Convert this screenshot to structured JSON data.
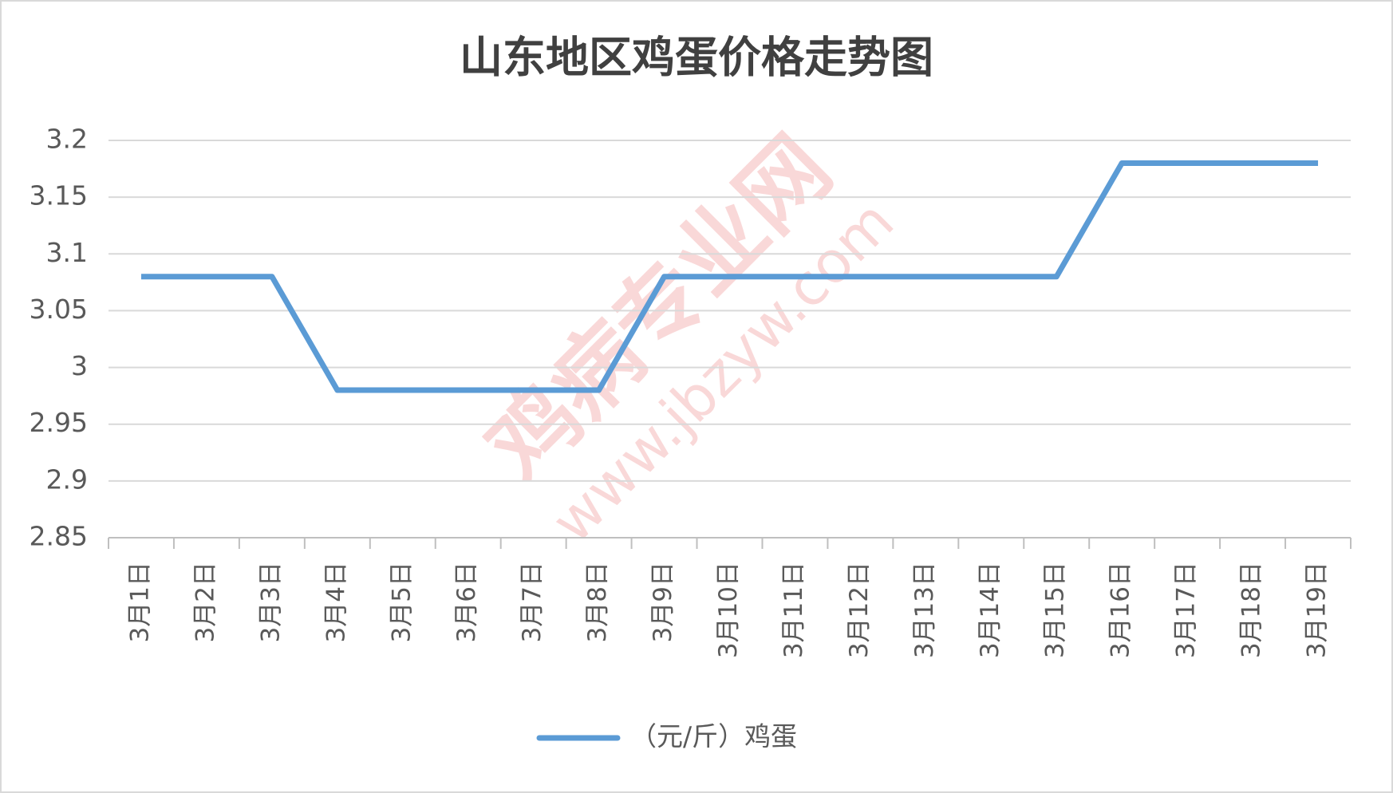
{
  "chart_data": {
    "type": "line",
    "title": "山东地区鸡蛋价格走势图",
    "categories": [
      "3月1日",
      "3月2日",
      "3月3日",
      "3月4日",
      "3月5日",
      "3月6日",
      "3月7日",
      "3月8日",
      "3月9日",
      "3月10日",
      "3月11日",
      "3月12日",
      "3月13日",
      "3月14日",
      "3月15日",
      "3月16日",
      "3月17日",
      "3月18日",
      "3月19日"
    ],
    "series": [
      {
        "name": "（元/斤）鸡蛋",
        "color": "#5b9bd5",
        "values": [
          3.08,
          3.08,
          3.08,
          2.98,
          2.98,
          2.98,
          2.98,
          2.98,
          3.08,
          3.08,
          3.08,
          3.08,
          3.08,
          3.08,
          3.08,
          3.18,
          3.18,
          3.18,
          3.18
        ]
      }
    ],
    "ylim": [
      2.85,
      3.2
    ],
    "yticks": [
      2.85,
      2.9,
      2.95,
      3,
      3.05,
      3.1,
      3.15,
      3.2
    ],
    "grid": true,
    "legend": "bottom",
    "watermark": [
      "鸡病专业网",
      "www.jbzyw.com"
    ]
  }
}
